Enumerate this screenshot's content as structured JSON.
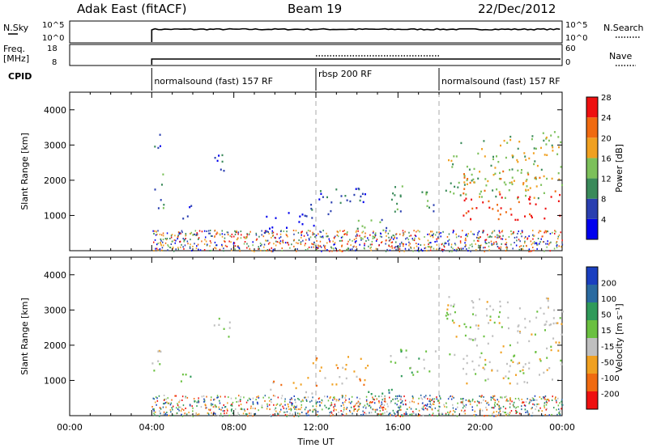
{
  "header": {
    "station": "Adak East (fitACF)",
    "beam": "Beam 19",
    "date": "22/Dec/2012"
  },
  "strips": {
    "nsky_label": "N.Sky",
    "nsearch_label": "N.Search",
    "freq_label": "Freq.",
    "freq_unit": "[MHz]",
    "nave_label": "Nave",
    "cpid_label": "CPID",
    "left_top_ticks": [
      "10^5",
      "10^0"
    ],
    "right_top_ticks": [
      "10^5",
      "10^0"
    ],
    "left_freq_ticks": [
      "18",
      "8"
    ],
    "right_nave_ticks": [
      "60",
      "0"
    ]
  },
  "cpid": [
    {
      "label": "normalsound (fast) 157 RF",
      "start_hour": 4
    },
    {
      "label": "rbsp 200 RF",
      "start_hour": 12
    },
    {
      "label": "normalsound (fast) 157 RF",
      "start_hour": 18
    }
  ],
  "chart_data": [
    {
      "type": "heatmap",
      "panel": "power",
      "xlabel": "",
      "ylabel": "Slant Range [km]",
      "xlim": [
        0,
        24
      ],
      "ylim": [
        0,
        4500
      ],
      "y_ticks": [
        "1000",
        "2000",
        "3000",
        "4000"
      ],
      "colorbar": {
        "label": "Power [dB]",
        "ticks": [
          "4",
          "8",
          "12",
          "16",
          "20",
          "24",
          "28"
        ],
        "colors": [
          "#0000ee",
          "#2a3fb0",
          "#3a8a5a",
          "#7cc05a",
          "#f0a020",
          "#f06a10",
          "#ee1010"
        ]
      },
      "regions": [
        {
          "t0": 4.0,
          "t1": 4.6,
          "r0": 1200,
          "r1": 2200,
          "level": 2
        },
        {
          "t0": 4.0,
          "t1": 4.5,
          "r0": 2700,
          "r1": 3400,
          "level": 1
        },
        {
          "t0": 5.2,
          "t1": 5.9,
          "r0": 850,
          "r1": 1300,
          "level": 1
        },
        {
          "t0": 6.9,
          "t1": 7.8,
          "r0": 2200,
          "r1": 2900,
          "level": 1
        },
        {
          "t0": 9.5,
          "t1": 12.0,
          "r0": 650,
          "r1": 1100,
          "level": 0
        },
        {
          "t0": 11.5,
          "t1": 14.5,
          "r0": 1000,
          "r1": 1800,
          "level": 1
        },
        {
          "t0": 14.0,
          "t1": 16.0,
          "r0": 600,
          "r1": 1000,
          "level": 2
        },
        {
          "t0": 15.6,
          "t1": 17.8,
          "r0": 1100,
          "r1": 1900,
          "level": 2
        },
        {
          "t0": 18.3,
          "t1": 24.0,
          "r0": 1500,
          "r1": 3400,
          "level": 3
        },
        {
          "t0": 19.0,
          "t1": 24.0,
          "r0": 900,
          "r1": 1700,
          "level": 6
        },
        {
          "t0": 19.0,
          "t1": 24.0,
          "r0": 1700,
          "r1": 2300,
          "level": 4
        }
      ]
    },
    {
      "type": "heatmap",
      "panel": "velocity",
      "xlabel": "Time UT",
      "ylabel": "Slant Range [km]",
      "xlim": [
        0,
        24
      ],
      "ylim": [
        0,
        4500
      ],
      "x_ticks": [
        "00:00",
        "04:00",
        "08:00",
        "12:00",
        "16:00",
        "20:00",
        "00:00"
      ],
      "y_ticks": [
        "1000",
        "2000",
        "3000",
        "4000"
      ],
      "colorbar": {
        "label": "Velocity [m s⁻¹]",
        "ticks": [
          "200",
          "100",
          "50",
          "15",
          "-15",
          "-50",
          "-100",
          "-200"
        ],
        "colors": [
          "#1a3fc0",
          "#2a6aa0",
          "#2f9a5a",
          "#6ac040",
          "#bfbfbf",
          "#f0a020",
          "#f06a10",
          "#ee1010"
        ]
      },
      "regions": [
        {
          "t0": 4.0,
          "t1": 4.6,
          "r0": 1200,
          "r1": 2200,
          "level": 4
        },
        {
          "t0": 5.2,
          "t1": 5.9,
          "r0": 850,
          "r1": 1300,
          "level": 3
        },
        {
          "t0": 6.9,
          "t1": 7.8,
          "r0": 2200,
          "r1": 2900,
          "level": 4
        },
        {
          "t0": 9.5,
          "t1": 12.0,
          "r0": 650,
          "r1": 1000,
          "level": 5
        },
        {
          "t0": 11.5,
          "t1": 14.5,
          "r0": 900,
          "r1": 1700,
          "level": 5
        },
        {
          "t0": 14.5,
          "t1": 16.2,
          "r0": 550,
          "r1": 900,
          "level": 2
        },
        {
          "t0": 15.6,
          "t1": 17.8,
          "r0": 1100,
          "r1": 1900,
          "level": 3
        },
        {
          "t0": 18.3,
          "t1": 24.0,
          "r0": 1500,
          "r1": 3400,
          "level": 4
        },
        {
          "t0": 19.0,
          "t1": 24.0,
          "r0": 900,
          "r1": 1700,
          "level": 4
        }
      ]
    }
  ]
}
